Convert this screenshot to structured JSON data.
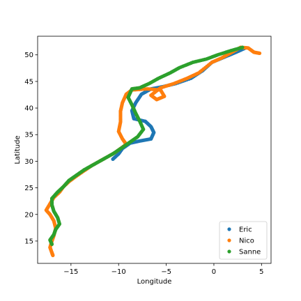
{
  "chart_data": {
    "type": "scatter",
    "title": "",
    "xlabel": "Longitude",
    "ylabel": "Latitude",
    "xlim": [
      -18.5,
      6.0
    ],
    "ylim": [
      10.8,
      53.5
    ],
    "xticks": [
      -15,
      -10,
      -5,
      0,
      5
    ],
    "yticks": [
      15,
      20,
      25,
      30,
      35,
      40,
      45,
      50
    ],
    "grid": false,
    "legend_position": "lower-right",
    "series": [
      {
        "name": "Eric",
        "color": "#1f77b4",
        "points": [
          [
            3.2,
            51.2
          ],
          [
            2.2,
            50.4
          ],
          [
            1.0,
            49.5
          ],
          [
            -0.2,
            48.6
          ],
          [
            -1.2,
            47.0
          ],
          [
            -2.4,
            45.6
          ],
          [
            -4.0,
            44.6
          ],
          [
            -5.4,
            44.0
          ],
          [
            -6.6,
            43.6
          ],
          [
            -7.6,
            42.6
          ],
          [
            -8.2,
            41.0
          ],
          [
            -8.6,
            39.5
          ],
          [
            -8.4,
            38.0
          ],
          [
            -7.2,
            37.5
          ],
          [
            -6.6,
            36.5
          ],
          [
            -6.3,
            35.4
          ],
          [
            -6.6,
            34.2
          ],
          [
            -7.8,
            33.8
          ],
          [
            -8.8,
            33.4
          ],
          [
            -9.6,
            32.4
          ],
          [
            -10.0,
            31.4
          ],
          [
            -10.6,
            30.4
          ]
        ]
      },
      {
        "name": "Nico",
        "color": "#ff7f0e",
        "points": [
          [
            4.8,
            50.3
          ],
          [
            4.2,
            50.5
          ],
          [
            3.6,
            51.3
          ],
          [
            2.8,
            51.4
          ],
          [
            1.8,
            50.4
          ],
          [
            0.8,
            49.4
          ],
          [
            -0.2,
            48.6
          ],
          [
            -1.6,
            46.6
          ],
          [
            -2.8,
            45.6
          ],
          [
            -4.2,
            44.6
          ],
          [
            -5.6,
            43.8
          ],
          [
            -6.6,
            42.4
          ],
          [
            -6.0,
            41.6
          ],
          [
            -5.2,
            42.2
          ],
          [
            -5.6,
            43.4
          ],
          [
            -7.0,
            43.6
          ],
          [
            -8.6,
            43.4
          ],
          [
            -9.2,
            42.6
          ],
          [
            -9.6,
            41.0
          ],
          [
            -9.8,
            39.4
          ],
          [
            -9.8,
            37.4
          ],
          [
            -10.0,
            35.6
          ],
          [
            -9.6,
            34.2
          ],
          [
            -9.2,
            33.2
          ],
          [
            -10.4,
            31.6
          ],
          [
            -11.6,
            30.4
          ],
          [
            -12.8,
            29.2
          ],
          [
            -13.8,
            28.0
          ],
          [
            -14.6,
            27.0
          ],
          [
            -15.2,
            26.2
          ],
          [
            -15.8,
            25.2
          ],
          [
            -16.2,
            24.2
          ],
          [
            -16.8,
            23.2
          ],
          [
            -17.2,
            22.0
          ],
          [
            -17.6,
            20.8
          ],
          [
            -17.2,
            20.0
          ],
          [
            -16.8,
            18.8
          ],
          [
            -16.6,
            17.4
          ],
          [
            -16.8,
            16.0
          ],
          [
            -17.0,
            15.0
          ],
          [
            -17.2,
            13.8
          ],
          [
            -17.0,
            12.8
          ],
          [
            -16.9,
            12.3
          ]
        ]
      },
      {
        "name": "Sanne",
        "color": "#2ca02c",
        "points": [
          [
            3.0,
            51.4
          ],
          [
            1.8,
            50.8
          ],
          [
            0.4,
            50.0
          ],
          [
            -0.8,
            49.2
          ],
          [
            -2.2,
            48.6
          ],
          [
            -3.6,
            47.6
          ],
          [
            -4.6,
            46.6
          ],
          [
            -5.8,
            45.6
          ],
          [
            -6.8,
            44.6
          ],
          [
            -7.8,
            43.8
          ],
          [
            -8.6,
            43.6
          ],
          [
            -9.0,
            42.0
          ],
          [
            -8.6,
            40.6
          ],
          [
            -8.2,
            39.0
          ],
          [
            -7.8,
            37.6
          ],
          [
            -7.4,
            36.0
          ],
          [
            -8.0,
            34.6
          ],
          [
            -8.8,
            33.6
          ],
          [
            -9.6,
            32.6
          ],
          [
            -10.6,
            31.4
          ],
          [
            -11.6,
            30.4
          ],
          [
            -12.6,
            29.4
          ],
          [
            -13.6,
            28.4
          ],
          [
            -14.4,
            27.4
          ],
          [
            -15.2,
            26.4
          ],
          [
            -15.8,
            25.2
          ],
          [
            -16.4,
            24.2
          ],
          [
            -17.0,
            23.0
          ],
          [
            -17.0,
            21.8
          ],
          [
            -16.8,
            20.6
          ],
          [
            -16.4,
            19.4
          ],
          [
            -16.2,
            18.2
          ],
          [
            -16.6,
            17.2
          ],
          [
            -16.8,
            16.2
          ],
          [
            -17.2,
            15.2
          ],
          [
            -17.0,
            14.4
          ]
        ]
      }
    ]
  }
}
